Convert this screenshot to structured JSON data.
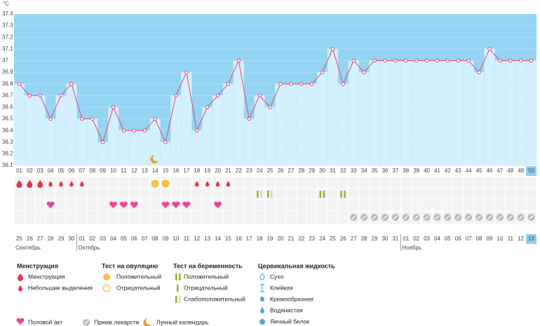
{
  "chart_data": {
    "type": "line",
    "y_unit": "°C",
    "categories": [
      "01",
      "02",
      "03",
      "04",
      "05",
      "06",
      "07",
      "08",
      "09",
      "10",
      "11",
      "12",
      "13",
      "14",
      "15",
      "16",
      "17",
      "18",
      "19",
      "20",
      "21",
      "22",
      "23",
      "24",
      "25",
      "26",
      "27",
      "28",
      "29",
      "30",
      "31",
      "32",
      "33",
      "34",
      "35",
      "36",
      "37",
      "38",
      "39",
      "40",
      "41",
      "42",
      "43",
      "44",
      "45",
      "46",
      "47",
      "48",
      "49",
      "50"
    ],
    "values": [
      36.8,
      36.7,
      36.7,
      36.5,
      36.7,
      36.8,
      36.5,
      36.5,
      36.3,
      36.6,
      36.4,
      36.4,
      36.4,
      36.5,
      36.3,
      36.7,
      36.9,
      36.4,
      36.6,
      36.7,
      36.8,
      37,
      36.5,
      36.7,
      36.6,
      36.8,
      36.8,
      36.8,
      36.8,
      36.9,
      37.1,
      36.8,
      37,
      36.9,
      37,
      37,
      37,
      37,
      37,
      37,
      37,
      37,
      37,
      37,
      36.9,
      37.1,
      37,
      37,
      37,
      37
    ],
    "color": "#e4457c",
    "ylim": [
      36.1,
      37.4
    ],
    "yticks": [
      36.1,
      36.2,
      36.3,
      36.4,
      36.5,
      36.6,
      36.7,
      36.8,
      36.9,
      37,
      37.1,
      37.2,
      37.3,
      37.4
    ],
    "dates": [
      "25",
      "26",
      "27",
      "28",
      "29",
      "30",
      "01",
      "02",
      "03",
      "04",
      "05",
      "06",
      "07",
      "08",
      "09",
      "10",
      "11",
      "12",
      "13",
      "14",
      "15",
      "16",
      "17",
      "18",
      "19",
      "20",
      "21",
      "22",
      "23",
      "24",
      "25",
      "26",
      "27",
      "28",
      "29",
      "30",
      "31",
      "01",
      "02",
      "03",
      "04",
      "05",
      "06",
      "07",
      "08",
      "09",
      "10",
      "11",
      "12",
      "13"
    ],
    "weekend": [
      false,
      true,
      true,
      false,
      false,
      false,
      false,
      false,
      true,
      true,
      false,
      false,
      false,
      false,
      false,
      true,
      true,
      false,
      false,
      false,
      false,
      false,
      true,
      true,
      false,
      false,
      false,
      false,
      false,
      true,
      true,
      false,
      false,
      false,
      false,
      false,
      true,
      true,
      false,
      false,
      false,
      false,
      false,
      true,
      true,
      false,
      false,
      false,
      false,
      false
    ],
    "months": [
      "Сентябрь",
      null,
      null,
      null,
      null,
      null,
      "Октябрь",
      null,
      null,
      null,
      null,
      null,
      null,
      null,
      null,
      null,
      null,
      null,
      null,
      null,
      null,
      null,
      null,
      null,
      null,
      null,
      null,
      null,
      null,
      null,
      null,
      null,
      null,
      null,
      null,
      null,
      null,
      "Ноябрь",
      null,
      null,
      null,
      null,
      null,
      null,
      null,
      null,
      null,
      null,
      null,
      null
    ],
    "flow": [
      "heavy",
      "heavy",
      "heavy",
      "light",
      "light",
      "light",
      "light",
      null,
      null,
      null,
      null,
      null,
      null,
      null,
      null,
      null,
      null,
      "light",
      "light",
      "light",
      "light",
      null,
      null,
      null,
      null,
      null,
      null,
      null,
      null,
      null,
      null,
      null,
      null,
      null,
      null,
      null,
      null,
      null,
      null,
      null,
      null,
      null,
      null,
      null,
      null,
      null,
      null,
      null,
      null,
      null
    ],
    "ovulation_test": [
      null,
      null,
      null,
      null,
      null,
      null,
      null,
      null,
      null,
      null,
      null,
      null,
      null,
      "positive",
      "positive",
      null,
      null,
      null,
      null,
      null,
      null,
      null,
      null,
      null,
      null,
      null,
      null,
      null,
      null,
      null,
      null,
      null,
      null,
      null,
      null,
      null,
      null,
      null,
      null,
      null,
      null,
      null,
      null,
      null,
      null,
      null,
      null,
      null,
      null,
      null
    ],
    "pregnancy_test": [
      null,
      null,
      null,
      null,
      null,
      null,
      null,
      null,
      null,
      null,
      null,
      null,
      null,
      null,
      null,
      null,
      null,
      null,
      null,
      null,
      null,
      null,
      null,
      "weak",
      "weak",
      null,
      null,
      null,
      null,
      "positive",
      null,
      "positive",
      null,
      null,
      null,
      null,
      null,
      null,
      null,
      null,
      null,
      null,
      null,
      null,
      null,
      null,
      null,
      null,
      null,
      null
    ],
    "intercourse": [
      null,
      null,
      null,
      true,
      null,
      null,
      null,
      null,
      null,
      true,
      true,
      true,
      null,
      null,
      true,
      true,
      true,
      null,
      null,
      true,
      null,
      null,
      null,
      null,
      null,
      null,
      null,
      null,
      null,
      null,
      null,
      null,
      null,
      null,
      null,
      null,
      null,
      null,
      null,
      null,
      null,
      null,
      null,
      null,
      null,
      null,
      null,
      null,
      null,
      null
    ],
    "medication": [
      null,
      null,
      null,
      null,
      null,
      null,
      null,
      null,
      null,
      null,
      null,
      null,
      null,
      null,
      null,
      null,
      null,
      null,
      null,
      null,
      null,
      null,
      null,
      null,
      null,
      null,
      null,
      null,
      null,
      null,
      null,
      null,
      true,
      true,
      true,
      true,
      true,
      true,
      true,
      true,
      true,
      true,
      true,
      true,
      true,
      true,
      true,
      true,
      true,
      true
    ],
    "moon": [
      null,
      null,
      null,
      null,
      null,
      null,
      null,
      null,
      null,
      null,
      null,
      null,
      null,
      true,
      null,
      null,
      null,
      null,
      null,
      null,
      null,
      null,
      null,
      null,
      null,
      null,
      null,
      null,
      null,
      null,
      null,
      null,
      null,
      null,
      null,
      null,
      null,
      null,
      null,
      null,
      null,
      null,
      null,
      null,
      null,
      null,
      null,
      null,
      null,
      null
    ]
  },
  "legend": {
    "menstruation": {
      "title": "Менструация",
      "items": [
        "Менструация",
        "Небольшие выделения"
      ]
    },
    "ovulation": {
      "title": "Тест на овуляцию",
      "items": [
        "Положительный",
        "Отрицательный"
      ]
    },
    "pregnancy": {
      "title": "Тест на беременность",
      "items": [
        "Положительный",
        "Отрицательный",
        "Слабоположительный"
      ]
    },
    "cervical": {
      "title": "Цервикальная жидкость",
      "items": [
        "Сухо",
        "Клейкая",
        "Кремообразная",
        "Водянистая",
        "Яичный белок"
      ]
    },
    "other": [
      "Половой акт",
      "Прием лекарств",
      "Лунный календарь"
    ]
  }
}
